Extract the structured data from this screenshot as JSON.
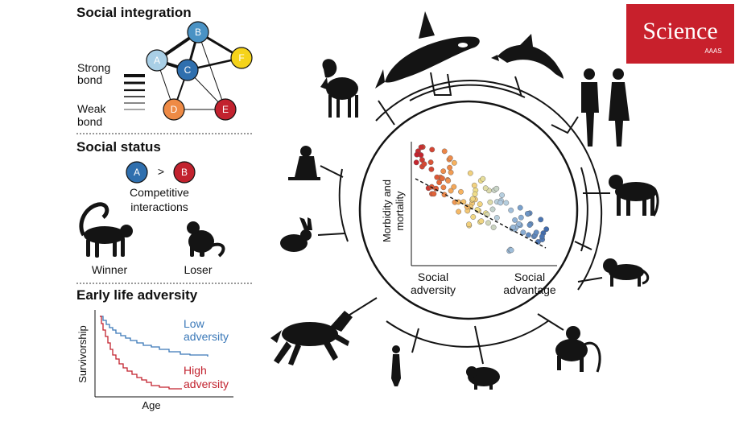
{
  "brand": {
    "name": "Science",
    "sub": "AAAS",
    "color": "#c8202c"
  },
  "integration": {
    "title": "Social integration",
    "nodes": [
      {
        "id": "A",
        "color": "#a9cfe6"
      },
      {
        "id": "B",
        "color": "#4a92c4"
      },
      {
        "id": "C",
        "color": "#2f6fae"
      },
      {
        "id": "D",
        "color": "#ee8a45"
      },
      {
        "id": "E",
        "color": "#c2222e"
      },
      {
        "id": "F",
        "color": "#f5d31a"
      }
    ],
    "strong_label": [
      "Strong",
      "bond"
    ],
    "weak_label": [
      "Weak",
      "bond"
    ]
  },
  "status": {
    "title": "Social status",
    "a": "A",
    "gt": ">",
    "b": "B",
    "caption": [
      "Competitive",
      "interactions"
    ],
    "winner": "Winner",
    "loser": "Loser"
  },
  "adversity": {
    "title": "Early life adversity",
    "ylabel": "Survivorship",
    "xlabel": "Age",
    "low": [
      "Low",
      "adversity"
    ],
    "high": [
      "High",
      "adversity"
    ],
    "low_color": "#3a78b8",
    "high_color": "#c2222e"
  },
  "scatter": {
    "ylabel": [
      "Morbidity and",
      "mortality"
    ],
    "left": [
      "Social",
      "adversity"
    ],
    "right": [
      "Social",
      "advantage"
    ]
  },
  "animals": [
    "ram-icon",
    "orca-icon",
    "dolphin-icon",
    "humans-icon",
    "baboon-icon",
    "capuchin-icon",
    "macaque-icon",
    "hyrax-icon",
    "meerkat-icon",
    "horse-icon",
    "rabbit-icon",
    "marmot-icon"
  ]
}
